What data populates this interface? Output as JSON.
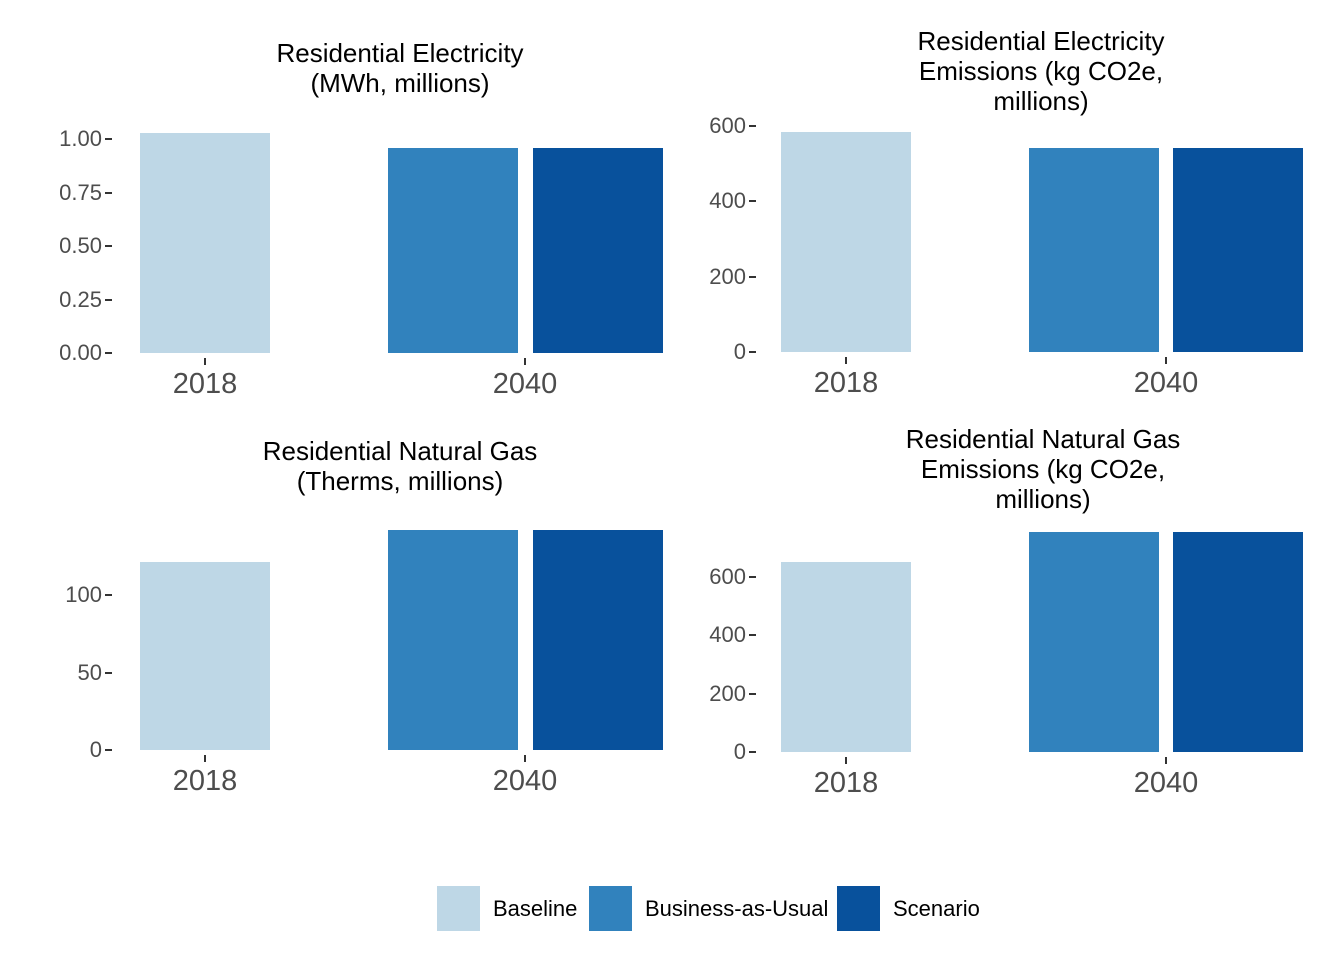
{
  "figure": {
    "background": "#FFFFFF"
  },
  "palette": {
    "Baseline": "#BED7E6",
    "Business-as-Usual": "#3182BD",
    "Scenario": "#08519C"
  },
  "legend": {
    "position": "bottom-center",
    "items": [
      {
        "label": "Baseline",
        "color": "#BED7E6"
      },
      {
        "label": "Business-as-Usual",
        "color": "#3182BD"
      },
      {
        "label": "Scenario",
        "color": "#08519C"
      }
    ]
  },
  "chart_data": [
    {
      "type": "bar",
      "title": "Residential Electricity\n(MWh, millions)",
      "categories": [
        "2018",
        "2040"
      ],
      "series": [
        {
          "name": "Baseline",
          "category": "2018",
          "value": 1.03
        },
        {
          "name": "Business-as-Usual",
          "category": "2040",
          "value": 0.96
        },
        {
          "name": "Scenario",
          "category": "2040",
          "value": 0.96
        }
      ],
      "xlabel": "",
      "ylabel": "",
      "ylim": [
        0,
        1.1
      ],
      "yticks": [
        {
          "label": "0.00",
          "value": 0
        },
        {
          "label": "0.25",
          "value": 0.25
        },
        {
          "label": "0.50",
          "value": 0.5
        },
        {
          "label": "0.75",
          "value": 0.75
        },
        {
          "label": "1.00",
          "value": 1
        }
      ],
      "grid": false,
      "legend_position": "shared-bottom"
    },
    {
      "type": "bar",
      "title": "Residential Electricity\nEmissions (kg CO2e,\nmillions)",
      "categories": [
        "2018",
        "2040"
      ],
      "series": [
        {
          "name": "Baseline",
          "category": "2018",
          "value": 585
        },
        {
          "name": "Business-as-Usual",
          "category": "2040",
          "value": 542
        },
        {
          "name": "Scenario",
          "category": "2040",
          "value": 542
        }
      ],
      "xlabel": "",
      "ylabel": "",
      "ylim": [
        0,
        624
      ],
      "yticks": [
        {
          "label": "0",
          "value": 0
        },
        {
          "label": "200",
          "value": 200
        },
        {
          "label": "400",
          "value": 400
        },
        {
          "label": "600",
          "value": 600
        }
      ],
      "grid": false,
      "legend_position": "shared-bottom"
    },
    {
      "type": "bar",
      "title": "Residential Natural Gas\n(Therms, millions)",
      "categories": [
        "2018",
        "2040"
      ],
      "series": [
        {
          "name": "Baseline",
          "category": "2018",
          "value": 121
        },
        {
          "name": "Business-as-Usual",
          "category": "2040",
          "value": 142
        },
        {
          "name": "Scenario",
          "category": "2040",
          "value": 142
        }
      ],
      "xlabel": "",
      "ylabel": "",
      "ylim": [
        0,
        150
      ],
      "yticks": [
        {
          "label": "0",
          "value": 0
        },
        {
          "label": "50",
          "value": 50
        },
        {
          "label": "100",
          "value": 100
        }
      ],
      "grid": false,
      "legend_position": "shared-bottom"
    },
    {
      "type": "bar",
      "title": "Residential Natural Gas\nEmissions (kg CO2e,\nmillions)",
      "categories": [
        "2018",
        "2040"
      ],
      "series": [
        {
          "name": "Baseline",
          "category": "2018",
          "value": 652
        },
        {
          "name": "Business-as-Usual",
          "category": "2040",
          "value": 755
        },
        {
          "name": "Scenario",
          "category": "2040",
          "value": 755
        }
      ],
      "xlabel": "",
      "ylabel": "",
      "ylim": [
        0,
        796
      ],
      "yticks": [
        {
          "label": "0",
          "value": 0
        },
        {
          "label": "200",
          "value": 200
        },
        {
          "label": "400",
          "value": 400
        },
        {
          "label": "600",
          "value": 600
        }
      ],
      "grid": false,
      "legend_position": "shared-bottom"
    }
  ]
}
